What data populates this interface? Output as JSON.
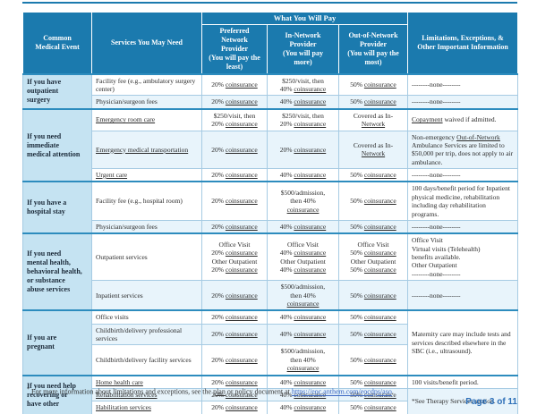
{
  "link_terms": [
    "Out-of-Network",
    "Copayment",
    "coinsurance",
    "Network"
  ],
  "header": {
    "col_event": "Common\nMedical Event",
    "col_services": "Services You May Need",
    "banner": "What You Will Pay",
    "col_preferred": "Preferred\nNetwork\nProvider\n(You will pay the\nleast)",
    "col_in_network": "In-Network\nProvider\n(You will pay\nmore)",
    "col_out_network": "Out-of-Network\nProvider\n(You will pay the\nmost)",
    "col_limitations": "Limitations, Exceptions, &\nOther Important Information"
  },
  "sections": [
    {
      "label": "If you have\noutpatient\nsurgery",
      "rows": [
        {
          "service": "Facility fee (e.g., ambulatory surgery center)",
          "pref": "20% coinsurance",
          "innet": "$250/visit, then\n40% coinsurance",
          "outnet": "50% coinsurance",
          "lim": "--------none--------"
        },
        {
          "service": "Physician/surgeon fees",
          "pref": "20% coinsurance",
          "innet": "40% coinsurance",
          "outnet": "50% coinsurance",
          "lim": "--------none--------"
        }
      ]
    },
    {
      "label": "If you need\nimmediate\nmedical attention",
      "rows": [
        {
          "service": "Emergency room care",
          "pref": "$250/visit, then\n20% coinsurance",
          "innet": "$250/visit, then\n20% coinsurance",
          "outnet": "Covered as In-\nNetwork",
          "lim": "Copayment waived if admitted."
        },
        {
          "service": "Emergency medical transportation",
          "pref": "20% coinsurance",
          "innet": "20% coinsurance",
          "outnet": "Covered as In-\nNetwork",
          "lim": "Non-emergency Out-of-Network Ambulance Services are limited to $50,000 per trip, does not apply to air ambulance."
        },
        {
          "service": "Urgent care",
          "pref": "20% coinsurance",
          "innet": "40% coinsurance",
          "outnet": "50% coinsurance",
          "lim": "--------none--------"
        }
      ]
    },
    {
      "label": "If you have a\nhospital stay",
      "rows": [
        {
          "service": "Facility fee (e.g., hospital room)",
          "pref": "20% coinsurance",
          "innet": "$500/admission,\nthen 40%\ncoinsurance",
          "outnet": "50% coinsurance",
          "lim": "100 days/benefit period for Inpatient physical medicine, rehabilitation including day rehabilitation programs."
        },
        {
          "service": "Physician/surgeon fees",
          "pref": "20% coinsurance",
          "innet": "40% coinsurance",
          "outnet": "50% coinsurance",
          "lim": "--------none--------"
        }
      ]
    },
    {
      "label": "If you need\nmental health,\nbehavioral health,\nor substance\nabuse services",
      "rows": [
        {
          "service": "Outpatient services",
          "pref": "Office Visit\n20% coinsurance\nOther Outpatient\n20% coinsurance",
          "innet": "Office Visit\n40% coinsurance\nOther Outpatient\n40% coinsurance",
          "outnet": "Office Visit\n50% coinsurance\nOther Outpatient\n50% coinsurance",
          "lim": "Office Visit\nVirtual visits (Telehealth)\nbenefits available.\nOther Outpatient\n--------none--------"
        },
        {
          "service": "Inpatient services",
          "pref": "20% coinsurance",
          "innet": "$500/admission,\nthen 40%\ncoinsurance",
          "outnet": "50% coinsurance",
          "lim": "--------none--------"
        }
      ]
    },
    {
      "label": "If you are\npregnant",
      "shared_lim": "Maternity care may include tests and services described elsewhere in the SBC (i.e., ultrasound).",
      "rows": [
        {
          "service": "Office visits",
          "pref": "20% coinsurance",
          "innet": "40% coinsurance",
          "outnet": "50% coinsurance"
        },
        {
          "service": "Childbirth/delivery professional services",
          "pref": "20% coinsurance",
          "innet": "40% coinsurance",
          "outnet": "50% coinsurance"
        },
        {
          "service": "Childbirth/delivery facility services",
          "pref": "20% coinsurance",
          "innet": "$500/admission,\nthen 40%\ncoinsurance",
          "outnet": "50% coinsurance"
        }
      ]
    },
    {
      "label": "If you need help\nrecovering or\nhave other",
      "shared_lim": "*See Therapy Services section.",
      "rows": [
        {
          "service": "Home health care",
          "pref": "20% coinsurance",
          "innet": "40% coinsurance",
          "outnet": "50% coinsurance",
          "lim": "100 visits/benefit period."
        },
        {
          "service": "Rehabilitation services",
          "pref": "20% coinsurance",
          "innet": "40% coinsurance",
          "outnet": "50% coinsurance"
        },
        {
          "service": "Habilitation services",
          "pref": "20% coinsurance",
          "innet": "40% coinsurance",
          "outnet": "50% coinsurance"
        }
      ]
    }
  ],
  "footnote": {
    "marker": "*",
    "prefix": " For more information about limitations and exceptions, see the ",
    "plan_link": "plan",
    "middle": " or policy document at ",
    "url": "https://eoc.anthem.com/eocdps/aso",
    "suffix": "."
  },
  "page_number": "Page 3 of 11"
}
